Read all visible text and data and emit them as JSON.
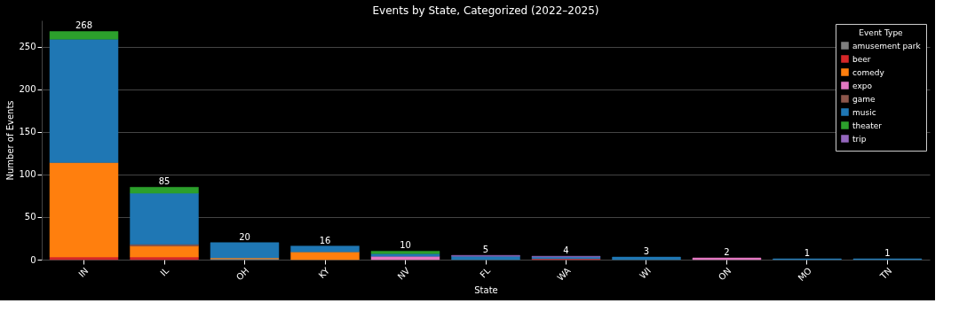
{
  "chart_data": {
    "type": "bar",
    "stacked": true,
    "title": "Events by State, Categorized (2022–2025)",
    "xlabel": "State",
    "ylabel": "Number of Events",
    "legend_title": "Event Type",
    "legend": "top right",
    "grid": "y",
    "categories": [
      "IN",
      "IL",
      "OH",
      "KY",
      "NV",
      "FL",
      "WA",
      "WI",
      "ON",
      "MO",
      "TN"
    ],
    "ylim": [
      0,
      281
    ],
    "yticks": [
      0,
      50,
      100,
      150,
      200,
      250
    ],
    "series": [
      {
        "name": "amusement park",
        "color": "#7f7f7f",
        "values": [
          null,
          null,
          1,
          null,
          null,
          null,
          null,
          null,
          null,
          null,
          null
        ]
      },
      {
        "name": "beer",
        "color": "#d62728",
        "values": [
          3,
          3,
          null,
          null,
          null,
          null,
          1,
          null,
          null,
          null,
          null
        ]
      },
      {
        "name": "comedy",
        "color": "#ff7f0e",
        "values": [
          111,
          13,
          1,
          9,
          null,
          null,
          null,
          null,
          null,
          null,
          null
        ]
      },
      {
        "name": "expo",
        "color": "#e377c2",
        "values": [
          null,
          null,
          null,
          null,
          4,
          null,
          null,
          null,
          2,
          null,
          null
        ]
      },
      {
        "name": "game",
        "color": "#8c564b",
        "values": [
          null,
          2,
          null,
          null,
          null,
          null,
          null,
          null,
          null,
          null,
          null
        ]
      },
      {
        "name": "music",
        "color": "#1f77b4",
        "values": [
          145,
          60,
          18,
          7,
          3,
          4,
          2,
          3,
          null,
          1,
          1
        ]
      },
      {
        "name": "theater",
        "color": "#2ca02c",
        "values": [
          9,
          7,
          null,
          null,
          3,
          null,
          null,
          null,
          null,
          null,
          null
        ]
      },
      {
        "name": "trip",
        "color": "#9467bd",
        "values": [
          null,
          null,
          null,
          null,
          null,
          1,
          1,
          null,
          null,
          null,
          null
        ]
      }
    ],
    "totals": [
      "268",
      "85",
      "20",
      "16",
      "10",
      "5",
      "4",
      "3",
      "2",
      "1",
      "1"
    ]
  }
}
